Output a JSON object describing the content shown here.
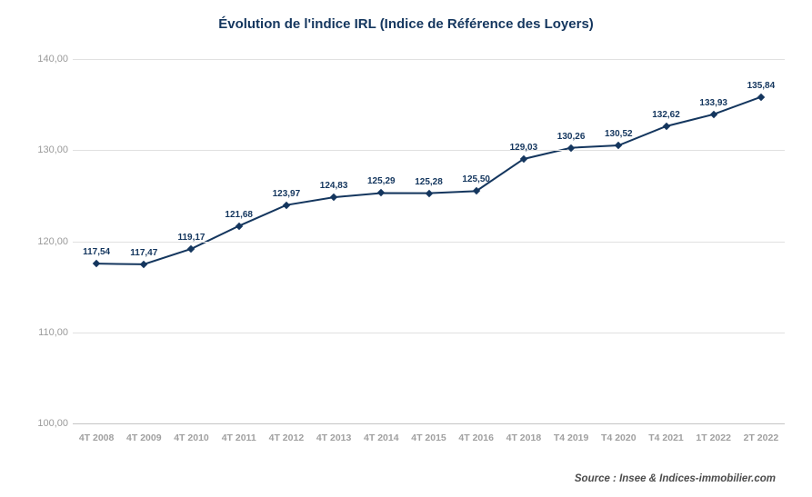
{
  "chart": {
    "type": "line",
    "title": "Évolution de l'indice IRL (Indice de Référence des Loyers)",
    "title_fontsize": 15,
    "title_color": "#14365e",
    "background_color": "#ffffff",
    "line_color": "#14365e",
    "line_width": 2,
    "marker_style": "diamond",
    "marker_color": "#14365e",
    "marker_size": 6,
    "grid_color": "#e1e1e1",
    "axis_color": "#c5c5c5",
    "ylim_min": 100.0,
    "ylim_max": 140.0,
    "ytick_step": 10.0,
    "ytick_labels": [
      "100,00",
      "110,00",
      "120,00",
      "130,00",
      "140,00"
    ],
    "ytick_values": [
      100.0,
      110.0,
      120.0,
      130.0,
      140.0
    ],
    "ytick_fontsize": 11,
    "ytick_color": "#9a9a9a",
    "xtick_fontsize": 10.5,
    "xtick_color": "#a0a0a0",
    "xtick_weight": "bold",
    "data_label_fontsize": 10,
    "data_label_color": "#14365e",
    "data_label_weight": "bold",
    "categories": [
      "4T 2008",
      "4T 2009",
      "4T 2010",
      "4T 2011",
      "4T 2012",
      "4T 2013",
      "4T 2014",
      "4T 2015",
      "4T 2016",
      "4T 2018",
      "T4 2019",
      "T4 2020",
      "T4 2021",
      "1T 2022",
      "2T 2022"
    ],
    "values": [
      117.54,
      117.47,
      119.17,
      121.68,
      123.97,
      124.83,
      125.29,
      125.28,
      125.5,
      129.03,
      130.26,
      130.52,
      132.62,
      133.93,
      135.84
    ],
    "value_labels": [
      "117,54",
      "117,47",
      "119,17",
      "121,68",
      "123,97",
      "124,83",
      "125,29",
      "125,28",
      "125,50",
      "129,03",
      "130,26",
      "130,52",
      "132,62",
      "133,93",
      "135,84"
    ]
  },
  "source": "Source : Insee & Indices-immobilier.com"
}
